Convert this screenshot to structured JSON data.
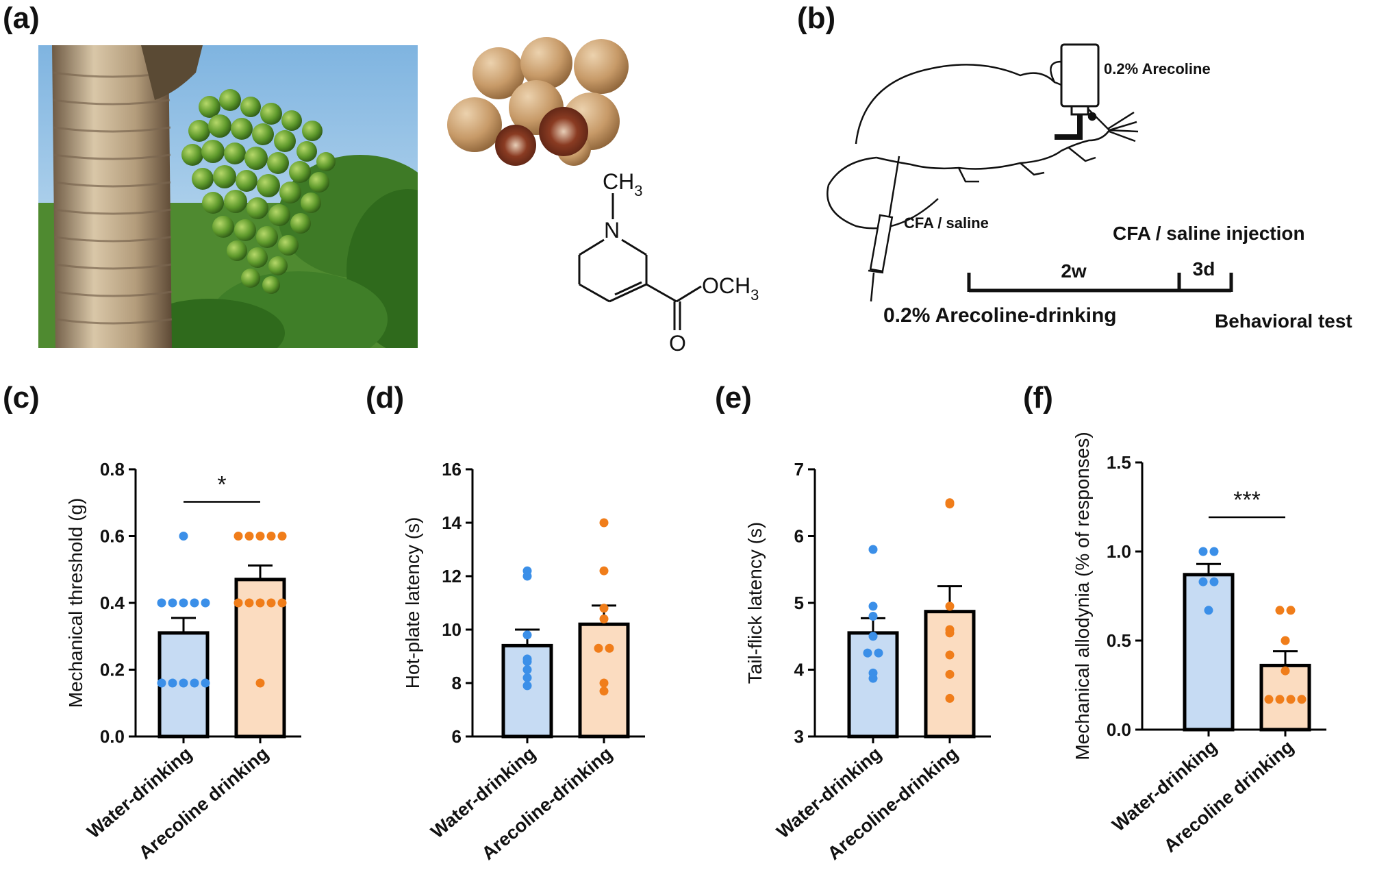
{
  "panels": {
    "a": {
      "label": "(a)"
    },
    "b": {
      "label": "(b)"
    },
    "c": {
      "label": "(c)"
    },
    "d": {
      "label": "(d)"
    },
    "e": {
      "label": "(e)"
    },
    "f": {
      "label": "(f)"
    }
  },
  "chemistry": {
    "methyl": "CH",
    "methyl_sub": "3",
    "nitrogen": "N",
    "ester": "OCH",
    "ester_sub": "3",
    "carbonyl_o": "O"
  },
  "schematic": {
    "bottle_label": "0.2% Arecoline",
    "syringe_label": "CFA / saline",
    "injection_label": "CFA / saline injection",
    "duration_1": "2w",
    "duration_2": "3d",
    "drinking_label": "0.2% Arecoline-drinking",
    "test_label": "Behavioral test"
  },
  "colors": {
    "water_fill": "#c6dbf3",
    "water_dot": "#3b8fe8",
    "arecoline_fill": "#fbdcc0",
    "arecoline_dot": "#f07d1a",
    "axis": "#000000"
  },
  "chart_data": [
    {
      "panel": "c",
      "type": "bar",
      "ylabel": "Mechanical threshold (g)",
      "ylim": [
        0,
        0.8
      ],
      "yticks": [
        "0.0",
        "0.2",
        "0.4",
        "0.6",
        "0.8"
      ],
      "categories": [
        "Water-drinking",
        "Arecoline drinking"
      ],
      "values": [
        0.31,
        0.47
      ],
      "sem": [
        0.045,
        0.042
      ],
      "points": [
        [
          0.6,
          0.4,
          0.4,
          0.4,
          0.4,
          0.4,
          0.16,
          0.16,
          0.16,
          0.16,
          0.16
        ],
        [
          0.6,
          0.6,
          0.6,
          0.6,
          0.6,
          0.4,
          0.4,
          0.4,
          0.4,
          0.4,
          0.16
        ]
      ],
      "significance": "*"
    },
    {
      "panel": "d",
      "type": "bar",
      "ylabel": "Hot-plate latency (s)",
      "ylim": [
        6,
        16
      ],
      "yticks": [
        "6",
        "8",
        "10",
        "12",
        "14",
        "16"
      ],
      "categories": [
        "Water-drinking",
        "Arecoline-drinking"
      ],
      "values": [
        9.4,
        10.2
      ],
      "sem": [
        0.6,
        0.7
      ],
      "points": [
        [
          12.2,
          12.0,
          9.8,
          8.8,
          8.5,
          8.9,
          7.9,
          8.2
        ],
        [
          14.0,
          12.2,
          10.8,
          10.4,
          9.3,
          9.3,
          8.0,
          7.7
        ]
      ],
      "significance": ""
    },
    {
      "panel": "e",
      "type": "bar",
      "ylabel": "Tail-flick latency (s)",
      "ylim": [
        3,
        7
      ],
      "yticks": [
        "3",
        "4",
        "5",
        "6",
        "7"
      ],
      "categories": [
        "Water-drinking",
        "Arecoline-drinking"
      ],
      "values": [
        4.55,
        4.87
      ],
      "sem": [
        0.22,
        0.38
      ],
      "points": [
        [
          5.8,
          4.95,
          4.8,
          4.5,
          4.25,
          4.25,
          3.95,
          3.87
        ],
        [
          6.5,
          6.48,
          4.95,
          4.6,
          4.55,
          4.22,
          3.93,
          3.57
        ]
      ],
      "significance": ""
    },
    {
      "panel": "f",
      "type": "bar",
      "ylabel": "Mechanical allodynia (% of responses)",
      "ylim": [
        0,
        1.5
      ],
      "yticks": [
        "0.0",
        "0.5",
        "1.0",
        "1.5"
      ],
      "categories": [
        "Water-drinking",
        "Arecoline drinking"
      ],
      "values": [
        0.87,
        0.36
      ],
      "sem": [
        0.06,
        0.08
      ],
      "points": [
        [
          1.0,
          1.0,
          0.83,
          0.83,
          0.67
        ],
        [
          0.67,
          0.67,
          0.5,
          0.33,
          0.17,
          0.17,
          0.17,
          0.17
        ]
      ],
      "significance": "***"
    }
  ]
}
